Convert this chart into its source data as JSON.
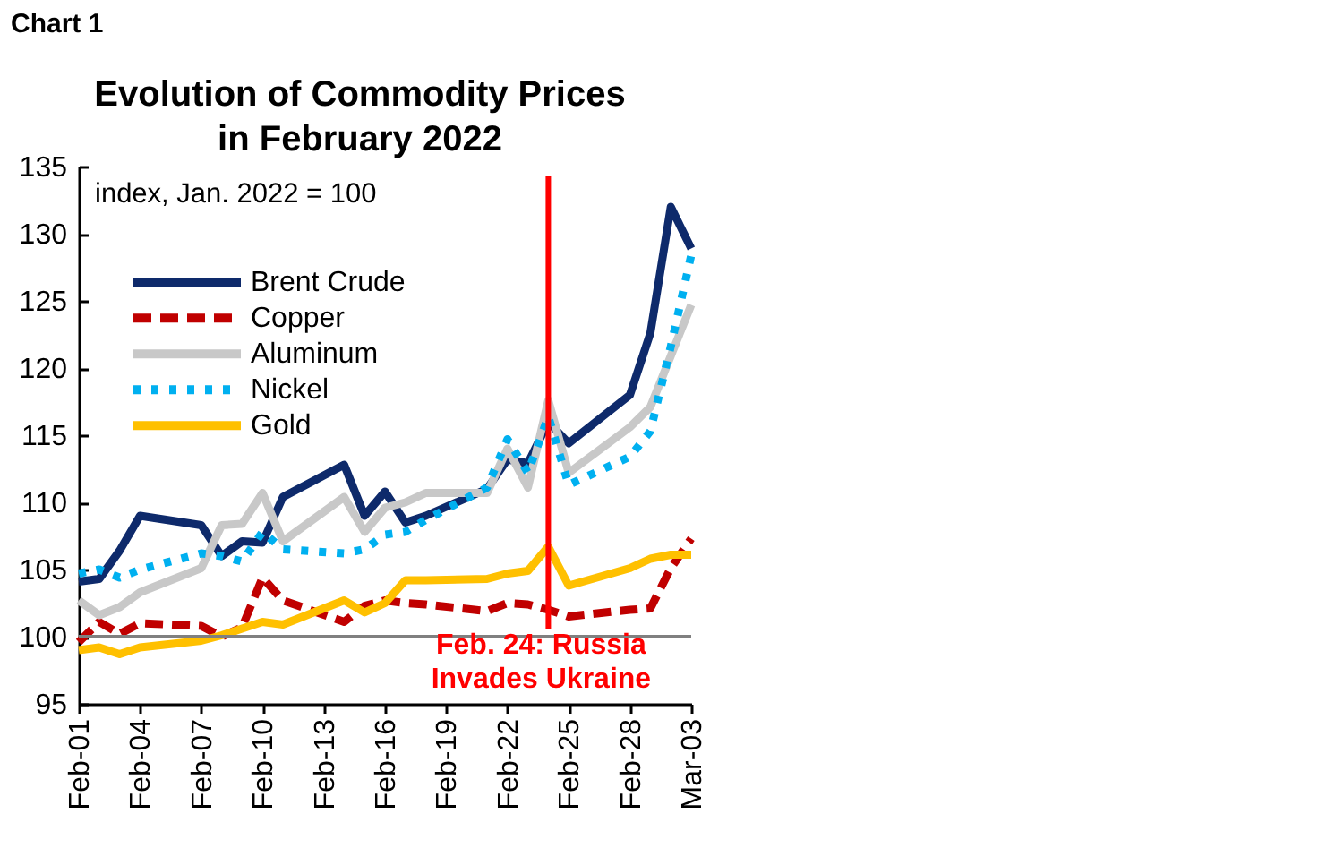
{
  "chart_data": {
    "type": "line",
    "title": "Evolution of Commodity Prices\nin February 2022",
    "ylabel": "index, Jan. 2022 = 100",
    "annotations": [
      "Chart 1"
    ],
    "x": [
      "--02-01",
      "--02-02",
      "--02-03",
      "--02-04",
      "--02-07",
      "--02-08",
      "--02-09",
      "--02-10",
      "--02-11",
      "--02-14",
      "--02-15",
      "--02-16",
      "--02-17",
      "--02-18",
      "--02-21",
      "--02-22",
      "--02-23",
      "--02-24",
      "--02-25",
      "--02-28",
      "--03-01",
      "--03-02",
      "--03-03"
    ],
    "series": [
      {
        "name": "Brent Crude",
        "color": "#0e2a6b",
        "line_style": "solid",
        "values": [
          104.1,
          104.3,
          106.4,
          109.0,
          108.3,
          106.0,
          107.1,
          107.0,
          110.4,
          112.8,
          109.0,
          110.8,
          108.5,
          109.0,
          111.0,
          113.2,
          112.9,
          116.0,
          114.4,
          118.0,
          122.6,
          132.0,
          128.9
        ]
      },
      {
        "name": "Copper",
        "color": "#c00000",
        "line_style": "dashed",
        "values": [
          99.6,
          101.1,
          100.2,
          101.0,
          100.8,
          100.0,
          100.7,
          104.4,
          102.7,
          101.1,
          102.3,
          102.7,
          102.5,
          102.4,
          101.9,
          102.5,
          102.4,
          102.0,
          101.5,
          102.0,
          102.1,
          105.1,
          107.3
        ]
      },
      {
        "name": "Aluminum",
        "color": "#c8c8c8",
        "line_style": "solid",
        "values": [
          102.7,
          101.6,
          102.2,
          103.3,
          105.1,
          108.3,
          108.4,
          110.7,
          107.1,
          110.4,
          107.8,
          109.6,
          110.0,
          110.7,
          110.7,
          114.0,
          111.1,
          117.6,
          112.2,
          115.6,
          117.1,
          120.9,
          124.7
        ]
      },
      {
        "name": "Nickel",
        "color": "#00b0f0",
        "line_style": "dotted",
        "values": [
          104.7,
          105.0,
          104.4,
          105.0,
          106.2,
          106.0,
          105.6,
          107.8,
          106.5,
          106.2,
          106.5,
          107.6,
          107.8,
          108.7,
          111.1,
          114.7,
          112.2,
          116.4,
          111.3,
          113.4,
          115.3,
          121.6,
          128.4
        ]
      },
      {
        "name": "Gold",
        "color": "#ffc000",
        "line_style": "solid",
        "values": [
          99.0,
          99.2,
          98.7,
          99.2,
          99.7,
          100.1,
          100.6,
          101.1,
          100.9,
          102.7,
          101.8,
          102.5,
          104.2,
          104.2,
          104.3,
          104.7,
          104.9,
          106.7,
          103.8,
          105.1,
          105.8,
          106.1,
          106.1
        ]
      }
    ],
    "xlim": [
      "--02-01",
      "--03-03"
    ],
    "xticks": [
      {
        "value": "--02-01",
        "label": "Feb-01"
      },
      {
        "value": "--02-04",
        "label": "Feb-04"
      },
      {
        "value": "--02-07",
        "label": "Feb-07"
      },
      {
        "value": "--02-10",
        "label": "Feb-10"
      },
      {
        "value": "--02-13",
        "label": "Feb-13"
      },
      {
        "value": "--02-16",
        "label": "Feb-16"
      },
      {
        "value": "--02-19",
        "label": "Feb-19"
      },
      {
        "value": "--02-22",
        "label": "Feb-22"
      },
      {
        "value": "--02-25",
        "label": "Feb-25"
      },
      {
        "value": "--02-28",
        "label": "Feb-28"
      },
      {
        "value": "--03-03",
        "label": "Mar-03"
      }
    ],
    "ylim": [
      95,
      135
    ],
    "yticks": [
      95,
      100,
      105,
      110,
      115,
      120,
      125,
      130,
      135
    ],
    "ref_lines": [
      {
        "axis": "y",
        "value": 100,
        "color": "#808080"
      },
      {
        "axis": "x",
        "value": "--02-24",
        "label": "Feb. 24: Russia\nInvades Ukraine",
        "color": "#ff0000"
      }
    ],
    "legend": "top left"
  }
}
